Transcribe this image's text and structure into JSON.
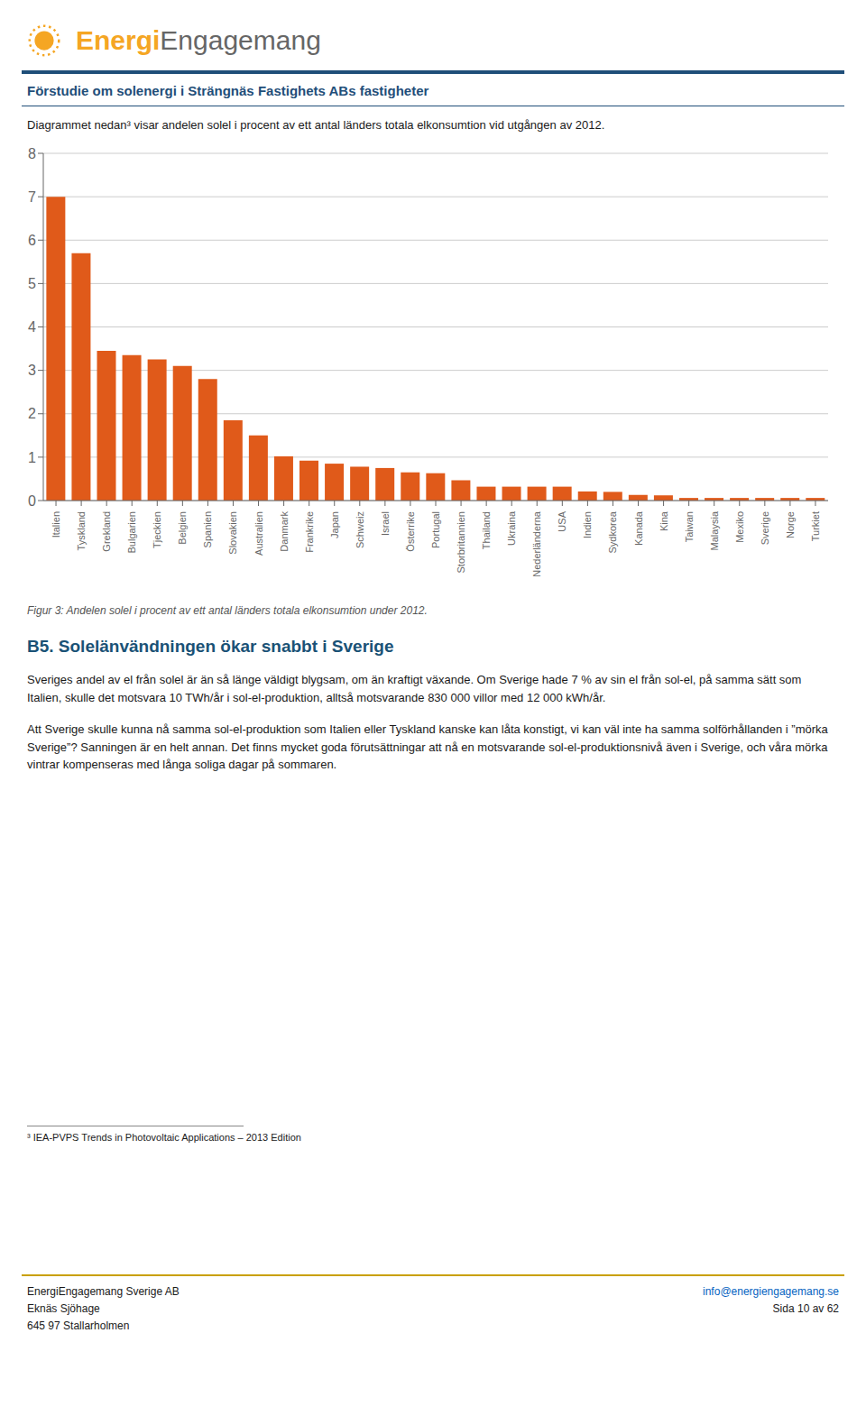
{
  "chart_data": {
    "type": "bar",
    "title": "Förstudie om solenergi i Strängnäs Fastighets ABs fastigheter",
    "annotations": [
      "Energi",
      "Engagemang",
      "Diagrammet nedan³ visar andelen solel i procent av ett antal länders totala elkonsumtion vid utgången av 2012.",
      "Figur 3: Andelen solel i procent av ett antal länders totala elkonsumtion under 2012.",
      "B5. Solelänvändningen ökar snabbt i Sverige",
      "Sveriges andel av el från solel är än så länge väldigt blygsam, om än kraftigt växande. Om Sverige hade 7 % av sin el från sol-el, på samma sätt som Italien, skulle det motsvara 10 TWh/år i sol-el-produktion, alltså motsvarande 830 000 villor med 12 000 kWh/år.",
      "Att Sverige skulle kunna nå samma sol-el-produktion som Italien eller Tyskland kanske kan låta konstigt, vi kan väl inte ha samma solförhållanden i ”mörka Sverige”?  Sanningen är en helt annan. Det finns mycket goda förutsättningar att nå en motsvarande sol-el-produktionsnivå även i Sverige, och våra mörka vintrar kompenseras med långa soliga dagar på sommaren.",
      "³ IEA-PVPS Trends in Photovoltaic Applications – 2013 Edition",
      "EnergiEngagemang Sverige AB\nEknäs Sjöhage\n645 97 Stallarholmen",
      "info@energiengagemang.se",
      "Sida 10 av 62"
    ],
    "categories": [
      "Italien",
      "Tyskland",
      "Grekland",
      "Bulgarien",
      "Tjeckien",
      "Belgien",
      "Spanien",
      "Slovakien",
      "Australien",
      "Danmark",
      "Frankrike",
      "Japan",
      "Schweiz",
      "Israel",
      "Österrike",
      "Portugal",
      "Storbritannien",
      "Thailand",
      "Ukraina",
      "Nederländerna",
      "USA",
      "Indien",
      "Sydkorea",
      "Kanada",
      "Kina",
      "Taiwan",
      "Malaysia",
      "Mexiko",
      "Sverige",
      "Norge",
      "Turkiet"
    ],
    "values": [
      7.0,
      5.7,
      3.45,
      3.35,
      3.25,
      3.1,
      2.8,
      1.85,
      1.5,
      1.02,
      0.92,
      0.85,
      0.78,
      0.75,
      0.65,
      0.63,
      0.47,
      0.32,
      0.32,
      0.32,
      0.32,
      0.21,
      0.2,
      0.13,
      0.12,
      0.06,
      0.06,
      0.06,
      0.06,
      0.06,
      0.06
    ],
    "color": "#E05A1A",
    "ylim": [
      0,
      8
    ],
    "yticks": [
      0,
      1,
      2,
      3,
      4,
      5,
      6,
      7,
      8
    ],
    "grid": true
  }
}
